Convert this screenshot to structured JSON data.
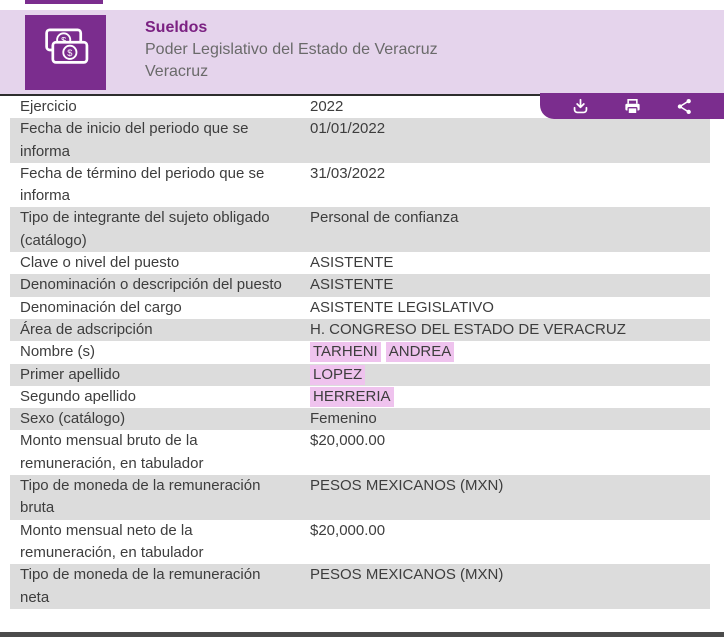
{
  "header": {
    "title": "Sueldos",
    "org": "Poder Legislativo del Estado de Veracruz",
    "state": "Veracruz",
    "icon": "banknotes-icon"
  },
  "toolbar": {
    "icons": [
      "download-icon",
      "printer-icon",
      "share-icon"
    ]
  },
  "colors": {
    "brand_purple": "#7b2d8e",
    "header_band": "#e5d4ec",
    "title_purple": "#7b2182",
    "subtitle_gray": "#6a6a6a",
    "row_shaded": "#dcdcdc",
    "row_text": "#3d3d3d",
    "value_highlight": "#efc3ee",
    "divider_dark": "#2d2d2d",
    "bottom_bar": "#4b4b4b"
  },
  "table": {
    "rows": [
      {
        "label": "Ejercicio",
        "shaded": false,
        "value_parts": [
          {
            "text": "2022",
            "highlight": false
          }
        ]
      },
      {
        "label": "Fecha de inicio del periodo que se informa",
        "shaded": true,
        "value_parts": [
          {
            "text": "01/01/2022",
            "highlight": false
          }
        ]
      },
      {
        "label": "Fecha de término del periodo que se informa",
        "shaded": false,
        "value_parts": [
          {
            "text": "31/03/2022",
            "highlight": false
          }
        ]
      },
      {
        "label": "Tipo de integrante del sujeto obligado (catálogo)",
        "shaded": true,
        "value_parts": [
          {
            "text": "Personal de confianza",
            "highlight": false
          }
        ]
      },
      {
        "label": "Clave o nivel del puesto",
        "shaded": false,
        "value_parts": [
          {
            "text": "ASISTENTE",
            "highlight": false
          }
        ]
      },
      {
        "label": "Denominación o descripción del puesto",
        "shaded": true,
        "value_parts": [
          {
            "text": "ASISTENTE",
            "highlight": false
          }
        ]
      },
      {
        "label": "Denominación del cargo",
        "shaded": false,
        "value_parts": [
          {
            "text": "ASISTENTE LEGISLATIVO",
            "highlight": false
          }
        ]
      },
      {
        "label": "Área de adscripción",
        "shaded": true,
        "value_parts": [
          {
            "text": "H. CONGRESO DEL ESTADO DE VERACRUZ",
            "highlight": false
          }
        ]
      },
      {
        "label": "Nombre (s)",
        "shaded": false,
        "value_parts": [
          {
            "text": "TARHENI",
            "highlight": true
          },
          {
            "text": "ANDREA",
            "highlight": true
          }
        ]
      },
      {
        "label": "Primer apellido",
        "shaded": true,
        "value_parts": [
          {
            "text": "LOPEZ",
            "highlight": true
          }
        ]
      },
      {
        "label": "Segundo apellido",
        "shaded": false,
        "value_parts": [
          {
            "text": "HERRERIA",
            "highlight": true
          }
        ]
      },
      {
        "label": "Sexo (catálogo)",
        "shaded": true,
        "value_parts": [
          {
            "text": "Femenino",
            "highlight": false
          }
        ]
      },
      {
        "label": "Monto mensual bruto de la remuneración, en tabulador",
        "shaded": false,
        "value_parts": [
          {
            "text": "$20,000.00",
            "highlight": false
          }
        ]
      },
      {
        "label": "Tipo de moneda de la remuneración bruta",
        "shaded": true,
        "value_parts": [
          {
            "text": "PESOS MEXICANOS (MXN)",
            "highlight": false
          }
        ]
      },
      {
        "label": "Monto mensual neto de la remuneración, en tabulador",
        "shaded": false,
        "value_parts": [
          {
            "text": "$20,000.00",
            "highlight": false
          }
        ]
      },
      {
        "label": "Tipo de moneda de la remuneración neta",
        "shaded": true,
        "value_parts": [
          {
            "text": "PESOS MEXICANOS (MXN)",
            "highlight": false
          }
        ]
      }
    ]
  }
}
